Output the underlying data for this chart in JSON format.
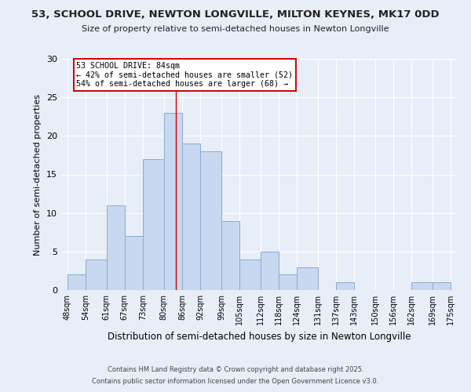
{
  "title": "53, SCHOOL DRIVE, NEWTON LONGVILLE, MILTON KEYNES, MK17 0DD",
  "subtitle": "Size of property relative to semi-detached houses in Newton Longville",
  "xlabel": "Distribution of semi-detached houses by size in Newton Longville",
  "ylabel": "Number of semi-detached properties",
  "bin_edges": [
    48,
    54,
    61,
    67,
    73,
    80,
    86,
    92,
    99,
    105,
    112,
    118,
    124,
    131,
    137,
    143,
    150,
    156,
    162,
    169,
    175
  ],
  "bin_counts": [
    2,
    4,
    11,
    7,
    17,
    23,
    19,
    18,
    9,
    4,
    5,
    2,
    3,
    0,
    1,
    0,
    0,
    0,
    1,
    1
  ],
  "bar_color": "#c8d8f0",
  "bar_edge_color": "#8aabcc",
  "property_size": 84,
  "marker_line_color": "#cc0000",
  "annotation_title": "53 SCHOOL DRIVE: 84sqm",
  "annotation_line1": "← 42% of semi-detached houses are smaller (52)",
  "annotation_line2": "54% of semi-detached houses are larger (68) →",
  "annotation_box_color": "#ffffff",
  "annotation_box_edge": "#cc0000",
  "ylim": [
    0,
    30
  ],
  "yticks": [
    0,
    5,
    10,
    15,
    20,
    25,
    30
  ],
  "background_color": "#e8eef8",
  "grid_color": "#ffffff",
  "footer1": "Contains HM Land Registry data © Crown copyright and database right 2025.",
  "footer2": "Contains public sector information licensed under the Open Government Licence v3.0."
}
